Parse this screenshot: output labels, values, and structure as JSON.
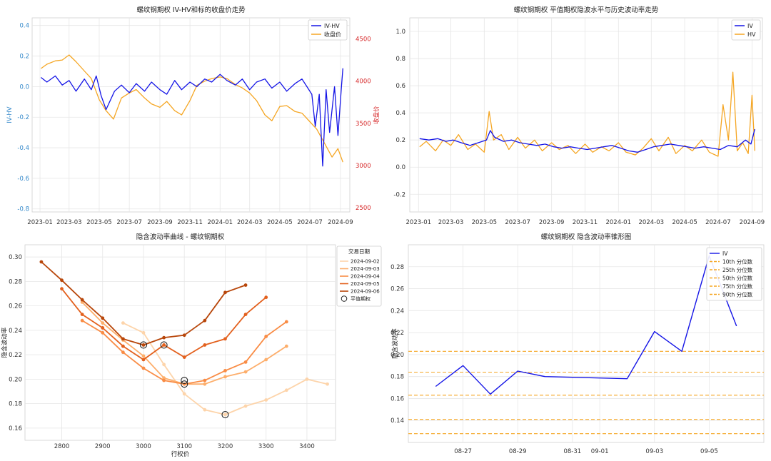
{
  "chart_data": [
    {
      "type": "line",
      "title": "螺纹钢期权 IV-HV和标的收盘价走势",
      "ylabel": "IV-HV",
      "ylabel_right": "收盘价",
      "xlabel": "",
      "x_ticks": [
        "2023-01",
        "2023-03",
        "2023-05",
        "2023-07",
        "2023-09",
        "2023-11",
        "2024-01",
        "2024-03",
        "2024-05",
        "2024-07",
        "2024-09"
      ],
      "y_ticks": [
        "0.4",
        "0.2",
        "0.0",
        "-0.2",
        "-0.4",
        "-0.6",
        "-0.8"
      ],
      "y_ticks_right": [
        "4500",
        "4000",
        "3500",
        "3000",
        "2500"
      ],
      "ylim": [
        -0.82,
        0.45
      ],
      "ylim_right": [
        2450,
        4750
      ],
      "xlim": [
        "2022-12-16",
        "2024-09-20"
      ],
      "legend": [
        "IV-HV",
        "收盘价"
      ],
      "legend_position": "top-right",
      "grid": true,
      "colors": {
        "iv_hv": "#1414e6",
        "close": "#f5a623",
        "left_axis": "#2f86c9",
        "right_axis": "#d62728"
      },
      "series": [
        {
          "name": "IV-HV",
          "axis": "left",
          "x": [
            "2023-01-03",
            "2023-01-15",
            "2023-02-01",
            "2023-02-15",
            "2023-03-01",
            "2023-03-15",
            "2023-04-01",
            "2023-04-15",
            "2023-04-25",
            "2023-05-05",
            "2023-05-15",
            "2023-06-01",
            "2023-06-15",
            "2023-07-01",
            "2023-07-15",
            "2023-08-01",
            "2023-08-15",
            "2023-09-01",
            "2023-09-15",
            "2023-10-01",
            "2023-10-15",
            "2023-11-01",
            "2023-11-15",
            "2023-12-01",
            "2023-12-15",
            "2024-01-01",
            "2024-01-15",
            "2024-02-01",
            "2024-02-15",
            "2024-03-01",
            "2024-03-15",
            "2024-04-01",
            "2024-04-15",
            "2024-05-01",
            "2024-05-15",
            "2024-06-01",
            "2024-06-15",
            "2024-06-25",
            "2024-07-05",
            "2024-07-12",
            "2024-07-20",
            "2024-07-27",
            "2024-08-03",
            "2024-08-10",
            "2024-08-20",
            "2024-08-27",
            "2024-09-03",
            "2024-09-06"
          ],
          "values": [
            0.06,
            0.03,
            0.07,
            0.01,
            0.04,
            -0.03,
            0.05,
            -0.02,
            0.07,
            -0.06,
            -0.15,
            -0.03,
            0.01,
            -0.04,
            0.02,
            -0.03,
            0.03,
            -0.02,
            -0.05,
            0.04,
            -0.02,
            0.03,
            0.0,
            0.05,
            0.03,
            0.08,
            0.04,
            0.01,
            0.05,
            -0.02,
            0.03,
            0.05,
            -0.01,
            0.03,
            -0.03,
            0.02,
            0.05,
            0.0,
            -0.05,
            -0.26,
            -0.05,
            -0.52,
            -0.02,
            -0.3,
            0.0,
            -0.32,
            0.0,
            0.12
          ]
        },
        {
          "name": "收盘价",
          "axis": "right",
          "x": [
            "2023-01-03",
            "2023-01-15",
            "2023-02-01",
            "2023-02-15",
            "2023-03-01",
            "2023-03-15",
            "2023-04-01",
            "2023-04-15",
            "2023-05-01",
            "2023-05-15",
            "2023-05-30",
            "2023-06-15",
            "2023-07-01",
            "2023-07-15",
            "2023-08-01",
            "2023-08-15",
            "2023-09-01",
            "2023-09-15",
            "2023-10-01",
            "2023-10-15",
            "2023-11-01",
            "2023-11-15",
            "2023-12-01",
            "2023-12-15",
            "2024-01-01",
            "2024-01-15",
            "2024-02-01",
            "2024-02-15",
            "2024-03-01",
            "2024-03-15",
            "2024-04-01",
            "2024-04-15",
            "2024-05-01",
            "2024-05-15",
            "2024-06-01",
            "2024-06-15",
            "2024-07-01",
            "2024-07-15",
            "2024-08-01",
            "2024-08-15",
            "2024-08-27",
            "2024-09-06"
          ],
          "values": [
            4150,
            4200,
            4240,
            4250,
            4310,
            4230,
            4120,
            4030,
            3780,
            3650,
            3550,
            3800,
            3860,
            3900,
            3800,
            3730,
            3690,
            3760,
            3650,
            3600,
            3770,
            3950,
            4000,
            4030,
            4050,
            4030,
            3960,
            3920,
            3860,
            3770,
            3600,
            3530,
            3700,
            3710,
            3640,
            3620,
            3520,
            3430,
            3250,
            3100,
            3200,
            3040
          ]
        }
      ]
    },
    {
      "type": "line",
      "title": "螺纹钢期权 平值期权隐波水平与历史波动率走势",
      "xlabel": "",
      "ylabel": "",
      "x_ticks": [
        "2023-01",
        "2023-03",
        "2023-05",
        "2023-07",
        "2023-09",
        "2023-11",
        "2024-01",
        "2024-03",
        "2024-05",
        "2024-07",
        "2024-09"
      ],
      "y_ticks": [
        "1.0",
        "0.8",
        "0.6",
        "0.4",
        "0.2",
        "0.0",
        "-0.2"
      ],
      "ylim": [
        -0.33,
        1.1
      ],
      "xlim": [
        "2022-12-16",
        "2024-09-20"
      ],
      "legend": [
        "IV",
        "HV"
      ],
      "legend_position": "top-right",
      "grid": true,
      "colors": {
        "iv": "#1414e6",
        "hv": "#f5a623"
      },
      "series": [
        {
          "name": "IV",
          "x": [
            "2023-01-03",
            "2023-01-20",
            "2023-02-05",
            "2023-02-20",
            "2023-03-05",
            "2023-03-20",
            "2023-04-05",
            "2023-04-20",
            "2023-05-05",
            "2023-05-12",
            "2023-05-20",
            "2023-06-05",
            "2023-06-20",
            "2023-07-05",
            "2023-07-20",
            "2023-08-05",
            "2023-08-20",
            "2023-09-05",
            "2023-09-20",
            "2023-10-05",
            "2023-10-20",
            "2023-11-05",
            "2023-11-20",
            "2023-12-05",
            "2023-12-20",
            "2024-01-05",
            "2024-01-20",
            "2024-02-05",
            "2024-02-20",
            "2024-03-05",
            "2024-03-20",
            "2024-04-05",
            "2024-04-20",
            "2024-05-05",
            "2024-05-20",
            "2024-06-05",
            "2024-06-20",
            "2024-07-05",
            "2024-07-20",
            "2024-08-05",
            "2024-08-20",
            "2024-08-30",
            "2024-09-06"
          ],
          "values": [
            0.21,
            0.2,
            0.21,
            0.19,
            0.2,
            0.18,
            0.16,
            0.18,
            0.2,
            0.27,
            0.22,
            0.19,
            0.2,
            0.18,
            0.17,
            0.16,
            0.17,
            0.15,
            0.14,
            0.15,
            0.14,
            0.13,
            0.14,
            0.15,
            0.16,
            0.14,
            0.12,
            0.11,
            0.13,
            0.15,
            0.16,
            0.17,
            0.16,
            0.15,
            0.14,
            0.15,
            0.14,
            0.13,
            0.16,
            0.15,
            0.2,
            0.17,
            0.28
          ]
        },
        {
          "name": "HV",
          "x": [
            "2023-01-03",
            "2023-01-15",
            "2023-02-01",
            "2023-02-15",
            "2023-03-01",
            "2023-03-15",
            "2023-04-01",
            "2023-04-15",
            "2023-05-01",
            "2023-05-10",
            "2023-05-18",
            "2023-06-01",
            "2023-06-15",
            "2023-07-01",
            "2023-07-15",
            "2023-08-01",
            "2023-08-15",
            "2023-09-01",
            "2023-09-15",
            "2023-10-01",
            "2023-10-15",
            "2023-11-01",
            "2023-11-15",
            "2023-12-01",
            "2023-12-15",
            "2024-01-01",
            "2024-01-15",
            "2024-02-01",
            "2024-02-15",
            "2024-03-01",
            "2024-03-15",
            "2024-04-01",
            "2024-04-15",
            "2024-05-01",
            "2024-05-15",
            "2024-06-01",
            "2024-06-15",
            "2024-07-01",
            "2024-07-10",
            "2024-07-20",
            "2024-07-28",
            "2024-08-05",
            "2024-08-15",
            "2024-08-25",
            "2024-09-01",
            "2024-09-06"
          ],
          "values": [
            0.15,
            0.19,
            0.12,
            0.2,
            0.16,
            0.24,
            0.13,
            0.17,
            0.11,
            0.41,
            0.2,
            0.24,
            0.13,
            0.22,
            0.14,
            0.2,
            0.12,
            0.18,
            0.13,
            0.16,
            0.1,
            0.17,
            0.11,
            0.15,
            0.12,
            0.18,
            0.11,
            0.09,
            0.14,
            0.21,
            0.12,
            0.22,
            0.1,
            0.16,
            0.12,
            0.2,
            0.11,
            0.08,
            0.46,
            0.2,
            0.7,
            0.12,
            0.18,
            0.1,
            0.53,
            0.12
          ]
        }
      ]
    },
    {
      "type": "line",
      "title": "隐含波动率曲线 - 螺纹钢期权",
      "xlabel": "行权价",
      "ylabel": "隐含波动率",
      "x_ticks": [
        "2800",
        "2900",
        "3000",
        "3100",
        "3200",
        "3300",
        "3400"
      ],
      "y_ticks": [
        "0.30",
        "0.28",
        "0.26",
        "0.24",
        "0.22",
        "0.20",
        "0.18",
        "0.16"
      ],
      "xlim": [
        2710,
        3470
      ],
      "ylim": [
        0.15,
        0.31
      ],
      "legend_title": "交易日期",
      "legend": [
        "2024-09-02",
        "2024-09-03",
        "2024-09-04",
        "2024-09-05",
        "2024-09-06",
        "平值期权"
      ],
      "legend_position": "top-right",
      "grid": true,
      "series": [
        {
          "name": "2024-09-02",
          "color": "#fdd4aa",
          "x": [
            2950,
            3000,
            3050,
            3100,
            3150,
            3200,
            3250,
            3300,
            3350,
            3400,
            3450
          ],
          "values": [
            0.246,
            0.238,
            0.212,
            0.188,
            0.175,
            0.171,
            0.178,
            0.183,
            0.191,
            0.2,
            0.196
          ]
        },
        {
          "name": "2024-09-03",
          "color": "#fdae6b",
          "x": [
            2850,
            2900,
            2950,
            3000,
            3050,
            3100,
            3150,
            3200,
            3250,
            3300,
            3350
          ],
          "values": [
            0.263,
            0.246,
            0.232,
            0.219,
            0.201,
            0.196,
            0.196,
            0.202,
            0.206,
            0.216,
            0.227
          ]
        },
        {
          "name": "2024-09-04",
          "color": "#f98c45",
          "x": [
            2850,
            2900,
            2950,
            3000,
            3050,
            3100,
            3150,
            3200,
            3250,
            3300,
            3350
          ],
          "values": [
            0.248,
            0.238,
            0.222,
            0.209,
            0.199,
            0.196,
            0.199,
            0.207,
            0.214,
            0.235,
            0.247
          ]
        },
        {
          "name": "2024-09-05",
          "color": "#e3601d",
          "x": [
            2800,
            2850,
            2900,
            2950,
            3000,
            3050,
            3100,
            3150,
            3200,
            3250,
            3300
          ],
          "values": [
            0.274,
            0.253,
            0.242,
            0.227,
            0.216,
            0.228,
            0.218,
            0.228,
            0.233,
            0.253,
            0.267
          ]
        },
        {
          "name": "2024-09-06",
          "color": "#b8460a",
          "x": [
            2750,
            2800,
            2850,
            2900,
            2950,
            3000,
            3050,
            3100,
            3150,
            3200,
            3250
          ],
          "values": [
            0.296,
            0.281,
            0.265,
            0.25,
            0.233,
            0.228,
            0.234,
            0.236,
            0.248,
            0.271,
            0.277
          ]
        }
      ],
      "atm_points": {
        "name": "平值期权",
        "x": [
          3000,
          3050,
          3100,
          3100,
          3200
        ],
        "values": [
          0.228,
          0.228,
          0.199,
          0.196,
          0.171
        ]
      }
    },
    {
      "type": "line",
      "title": "螺纹钢期权 隐含波动率锥形图",
      "xlabel": "",
      "ylabel": "隐含波动率",
      "x_ticks": [
        "08-27",
        "08-29",
        "08-31",
        "09-01",
        "09-03",
        "09-05"
      ],
      "y_ticks": [
        "0.28",
        "0.26",
        "0.24",
        "0.22",
        "0.20",
        "0.18",
        "0.16",
        "0.14"
      ],
      "xlim": [
        "2024-08-25",
        "2024-09-07"
      ],
      "ylim": [
        0.12,
        0.3
      ],
      "legend": [
        "IV",
        "10th 分位数",
        "25th 分位数",
        "50th 分位数",
        "75th 分位数",
        "90th 分位数"
      ],
      "legend_position": "top-right",
      "grid": true,
      "colors": {
        "iv": "#1414e6",
        "quantile": "#f5a623"
      },
      "series": [
        {
          "name": "IV",
          "x": [
            "2024-08-26",
            "2024-08-27",
            "2024-08-28",
            "2024-08-29",
            "2024-08-30",
            "2024-09-02",
            "2024-09-03",
            "2024-09-04",
            "2024-09-05",
            "2024-09-06"
          ],
          "values": [
            0.171,
            0.19,
            0.164,
            0.185,
            0.18,
            0.178,
            0.221,
            0.203,
            0.29,
            0.226
          ]
        }
      ],
      "quantiles": [
        {
          "name": "10th 分位数",
          "value": 0.128
        },
        {
          "name": "25th 分位数",
          "value": 0.141
        },
        {
          "name": "50th 分位数",
          "value": 0.163
        },
        {
          "name": "75th 分位数",
          "value": 0.184
        },
        {
          "name": "90th 分位数",
          "value": 0.203
        }
      ]
    }
  ]
}
